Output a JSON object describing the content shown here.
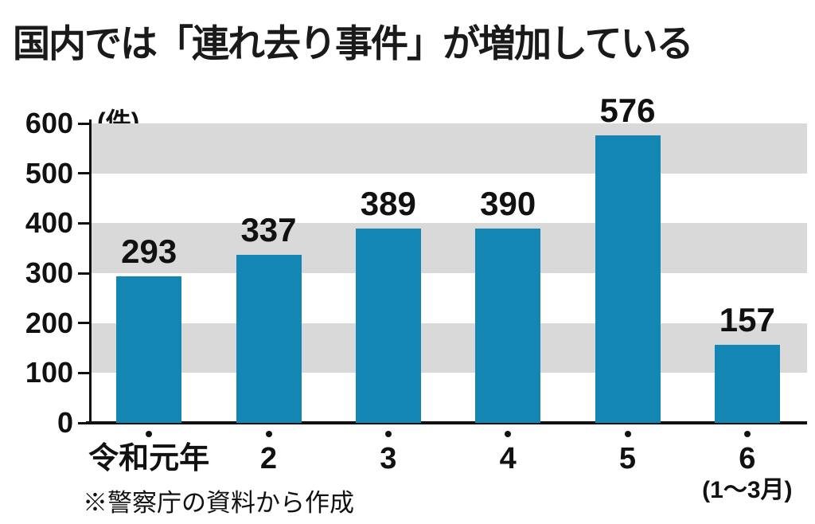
{
  "title": "国内では「連れ去り事件」が増加している",
  "source_note": "※警察庁の資料から作成",
  "chart_data": {
    "type": "bar",
    "title": "国内では「連れ去り事件」が増加している",
    "unit_label": "(件)",
    "categories": [
      "令和元年",
      "2",
      "3",
      "4",
      "5",
      "6"
    ],
    "values": [
      293,
      337,
      389,
      390,
      576,
      157
    ],
    "last_category_note": "(1〜3月)",
    "ylabel": "件",
    "ylim": [
      0,
      600
    ],
    "yticks": [
      0,
      100,
      200,
      300,
      400,
      500,
      600
    ],
    "stripe_bands": [
      [
        100,
        200
      ],
      [
        300,
        400
      ],
      [
        500,
        600
      ]
    ],
    "bar_color": "#1486b4",
    "stripe_color": "#d9d9d9",
    "grid": "banded",
    "legend": "none",
    "source": "※警察庁の資料から作成"
  }
}
